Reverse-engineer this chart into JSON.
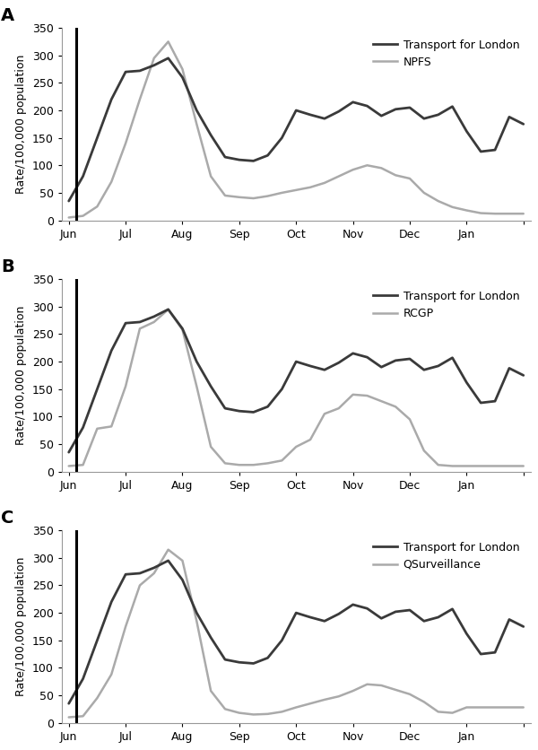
{
  "tfl": [
    35,
    80,
    150,
    220,
    270,
    272,
    282,
    295,
    260,
    200,
    155,
    115,
    110,
    108,
    118,
    150,
    200,
    192,
    185,
    198,
    215,
    208,
    190,
    202,
    205,
    185,
    192,
    207,
    162,
    125,
    128,
    188,
    175
  ],
  "npfs": [
    5,
    8,
    25,
    70,
    140,
    220,
    295,
    325,
    275,
    175,
    80,
    45,
    42,
    40,
    44,
    50,
    55,
    60,
    68,
    80,
    92,
    100,
    95,
    82,
    76,
    50,
    35,
    24,
    18,
    13,
    12,
    12,
    12
  ],
  "rcgp": [
    10,
    12,
    78,
    82,
    155,
    260,
    272,
    295,
    258,
    155,
    45,
    15,
    12,
    12,
    15,
    20,
    45,
    58,
    105,
    115,
    140,
    138,
    128,
    118,
    95,
    38,
    12,
    10,
    10,
    10,
    10,
    10,
    10
  ],
  "qsurv": [
    10,
    12,
    45,
    88,
    175,
    250,
    272,
    315,
    295,
    185,
    58,
    25,
    18,
    15,
    16,
    20,
    28,
    35,
    42,
    48,
    58,
    70,
    68,
    60,
    52,
    38,
    20,
    18,
    28,
    28,
    28,
    28,
    28
  ],
  "n_points": 33,
  "pandemic_x": 0.5,
  "month_positions": [
    0,
    4,
    8,
    12,
    16,
    20,
    24,
    28,
    32
  ],
  "month_labels": [
    "Jun",
    "Jul",
    "Aug",
    "Sep",
    "Oct",
    "Nov",
    "Dec",
    "Jan",
    ""
  ],
  "xlim": [
    -0.5,
    32.5
  ],
  "ylim": [
    0,
    350
  ],
  "yticks": [
    0,
    50,
    100,
    150,
    200,
    250,
    300,
    350
  ],
  "ylabel": "Rate/100,000 population",
  "tfl_color": "#3a3a3a",
  "indicator_color": "#aaaaaa",
  "pandemic_color": "#000000",
  "tfl_linewidth": 2.0,
  "indicator_linewidth": 1.8,
  "pandemic_linewidth": 2.2,
  "panel_labels": [
    "A",
    "B",
    "C"
  ],
  "legend_labels_A": [
    "Transport for London",
    "NPFS"
  ],
  "legend_labels_B": [
    "Transport for London",
    "RCGP"
  ],
  "legend_labels_C": [
    "Transport for London",
    "QSurveillance"
  ],
  "legend_fontsize": 9,
  "tick_fontsize": 9,
  "label_fontsize": 9,
  "panel_label_fontsize": 14,
  "background_color": "#ffffff"
}
